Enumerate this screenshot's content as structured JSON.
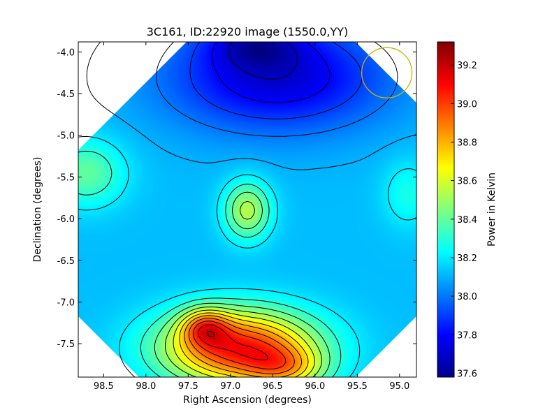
{
  "chart_data": {
    "type": "heatmap",
    "title": "3C161, ID:22920 image (1550.0,YY)",
    "xlabel": "Right Ascension (degrees)",
    "ylabel": "Declination (degrees)",
    "xlim": [
      98.8,
      94.8
    ],
    "ylim": [
      -7.9,
      -3.88
    ],
    "xticks": [
      98.5,
      98.0,
      97.5,
      97.0,
      96.5,
      96.0,
      95.5,
      95.0
    ],
    "xtick_labels": [
      "98.5",
      "98.0",
      "97.5",
      "97.0",
      "96.5",
      "96.0",
      "95.5",
      "95.0"
    ],
    "yticks": [
      -4.0,
      -4.5,
      -5.0,
      -5.5,
      -6.0,
      -6.5,
      -7.0,
      -7.5
    ],
    "ytick_labels": [
      "-4.0",
      "-4.5",
      "-5.0",
      "-5.5",
      "-6.0",
      "-6.5",
      "-7.0",
      "-7.5"
    ],
    "colorbar": {
      "label": "Power in Kelvin",
      "range": [
        37.58,
        39.32
      ],
      "ticks": [
        37.6,
        37.8,
        38.0,
        38.2,
        38.4,
        38.6,
        38.8,
        39.0,
        39.2
      ],
      "tick_labels": [
        "37.6",
        "37.8",
        "38.0",
        "38.2",
        "38.4",
        "38.6",
        "38.8",
        "39.0",
        "39.2"
      ],
      "colormap": "jet"
    },
    "field_shape": "octagon",
    "contour_levels": [
      37.7,
      37.8,
      37.9,
      38.0,
      38.1,
      38.2,
      38.3,
      38.4,
      38.5,
      38.6,
      38.7,
      38.8,
      38.9,
      39.0,
      39.1,
      39.2
    ],
    "peaks": [
      {
        "ra": 97.25,
        "dec": -7.3,
        "value": 39.3
      },
      {
        "ra": 96.65,
        "dec": -3.95,
        "value": 37.58
      },
      {
        "ra": 96.8,
        "dec": -5.9,
        "value": 38.72
      },
      {
        "ra": 96.35,
        "dec": -7.85,
        "value": 38.82
      }
    ],
    "beam_circle": {
      "ra": 95.15,
      "dec": -4.25,
      "color": "#c8b400"
    }
  }
}
